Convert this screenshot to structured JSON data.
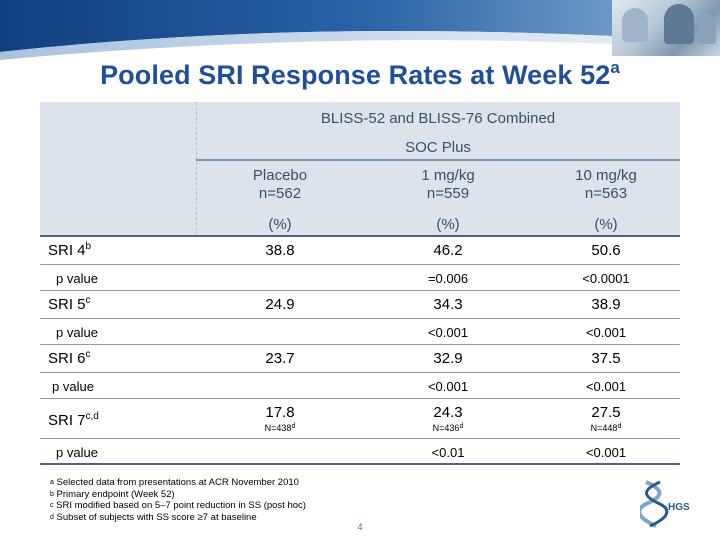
{
  "slide": {
    "title": "Pooled SRI Response Rates at Week 52",
    "title_sup": "a",
    "page_number": "4"
  },
  "table": {
    "group_header": "BLISS-52 and BLISS-76 Combined",
    "sub_header": "SOC Plus",
    "columns": [
      {
        "name": "Placebo",
        "n": "n=562",
        "unit": "(%)"
      },
      {
        "name": "1 mg/kg",
        "n": "n=559",
        "unit": "(%)"
      },
      {
        "name": "10 mg/kg",
        "n": "n=563",
        "unit": "(%)"
      }
    ],
    "rows": [
      {
        "label": "SRI 4",
        "sup": "b",
        "values": [
          "38.8",
          "46.2",
          "50.6"
        ],
        "p_label": "p value",
        "p_values": [
          "",
          "=0.006",
          "<0.0001"
        ]
      },
      {
        "label": "SRI 5",
        "sup": "c",
        "values": [
          "24.9",
          "34.3",
          "38.9"
        ],
        "p_label": "p value",
        "p_values": [
          "",
          "<0.001",
          "<0.001"
        ]
      },
      {
        "label": "SRI 6",
        "sup": "c",
        "values": [
          "23.7",
          "32.9",
          "37.5"
        ],
        "p_label": "p value",
        "p_values": [
          "",
          "<0.001",
          "<0.001"
        ]
      },
      {
        "label": "SRI 7",
        "sup": "c,d",
        "values": [
          "17.8",
          "24.3",
          "27.5"
        ],
        "n_values": [
          "N=438",
          "N=436",
          "N=448"
        ],
        "n_sup": "d",
        "p_label": "p value",
        "p_values": [
          "",
          "<0.01",
          "<0.001"
        ]
      }
    ]
  },
  "footnotes": [
    {
      "mark": "a",
      "text": "Selected data from presentations at ACR November 2010"
    },
    {
      "mark": "b",
      "text": "Primary endpoint (Week 52)"
    },
    {
      "mark": "c",
      "text": "SRI modified based on 5–7 point reduction in SS (post hoc)"
    },
    {
      "mark": "d",
      "text": "Subset of subjects with SS score ≥7 at baseline"
    }
  ],
  "logo": {
    "text": "HGS"
  },
  "colors": {
    "title": "#1f4e9b",
    "header_bg": "#dde3ea",
    "banner": "#1d4f8f"
  }
}
